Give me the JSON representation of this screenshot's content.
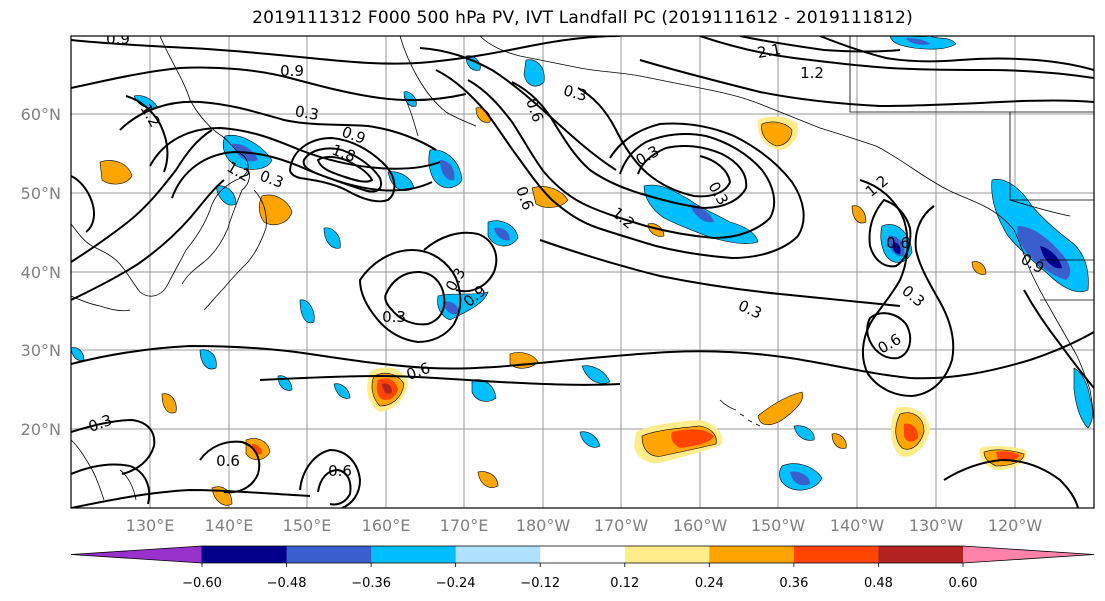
{
  "title": "2019111312 F000 500 hPa PV, IVT Landfall PC (2019111612 - 2019111812)",
  "map": {
    "lat_labels": [
      "20°N",
      "30°N",
      "40°N",
      "50°N",
      "60°N"
    ],
    "lon_labels": [
      "130°E",
      "140°E",
      "150°E",
      "160°E",
      "170°E",
      "180°W",
      "170°W",
      "160°W",
      "150°W",
      "140°W",
      "130°W",
      "120°W"
    ],
    "contour_labels": [
      "0.9",
      "0.9",
      "2.1",
      "1.2",
      "0.3",
      "0.9",
      "0.3",
      "1.2",
      "0.6",
      "1.8",
      "1.2",
      "0.3",
      "0.6",
      "1.2",
      "0.3",
      "0.3",
      "1.2",
      "0.6",
      "0.9",
      "0.3",
      "0.6",
      "0.3",
      "0.9",
      "0.3",
      "0.3",
      "0.6",
      "0.3",
      "0.6",
      "0.6"
    ]
  },
  "colorbar": {
    "colors": [
      "#9932cc",
      "#00008b",
      "#3a5fcd",
      "#00bfff",
      "#b0e2ff",
      "#ffffff",
      "#ffec8b",
      "#ffa500",
      "#ff4500",
      "#b22222",
      "#ff82ab"
    ],
    "tick_labels": [
      "−0.60",
      "−0.48",
      "−0.36",
      "−0.24",
      "−0.12",
      "0.12",
      "0.24",
      "0.36",
      "0.48",
      "0.60"
    ]
  }
}
